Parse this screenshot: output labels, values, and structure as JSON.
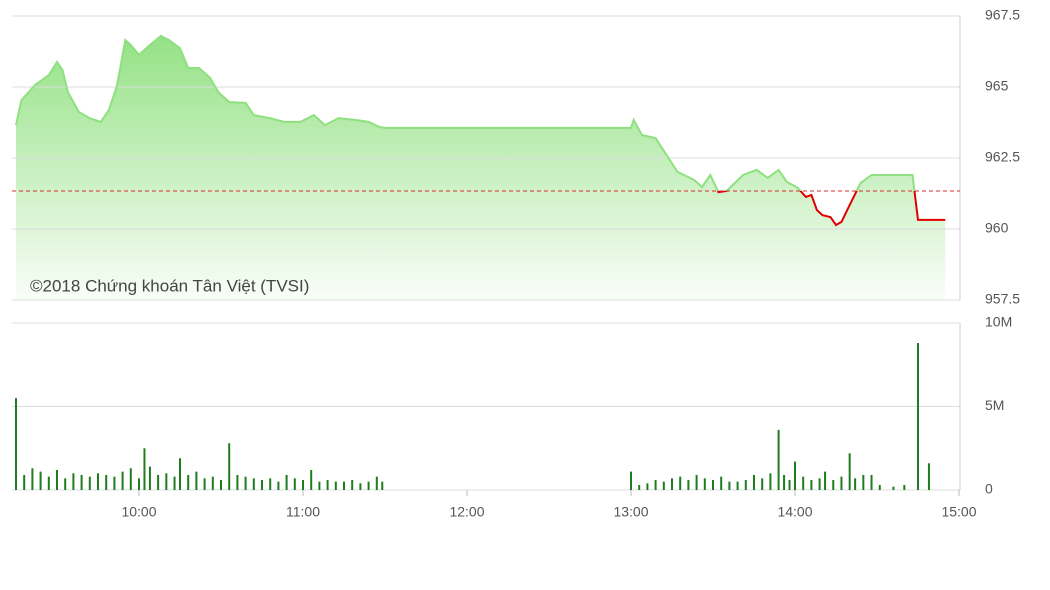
{
  "chart_data": [
    {
      "type": "line",
      "annotation": "©2018 Chứng khoán Tân Việt (TVSI)",
      "x": [
        "09:15",
        "09:17",
        "09:22",
        "09:27",
        "09:30",
        "09:32",
        "09:34",
        "09:38",
        "09:42",
        "09:46",
        "09:49",
        "09:52",
        "09:55",
        "09:57",
        "10:00",
        "10:04",
        "10:08",
        "10:11",
        "10:15",
        "10:18",
        "10:22",
        "10:26",
        "10:29",
        "10:33",
        "10:39",
        "10:42",
        "10:48",
        "10:53",
        "10:59",
        "11:04",
        "11:08",
        "11:13",
        "11:19",
        "11:24",
        "11:28",
        "11:30",
        "13:00",
        "13:01",
        "13:04",
        "13:09",
        "13:13",
        "13:17",
        "13:23",
        "13:26",
        "13:29",
        "13:32",
        "13:35",
        "13:41",
        "13:46",
        "13:50",
        "13:54",
        "13:57",
        "14:01",
        "14:04",
        "14:06",
        "14:08",
        "14:10",
        "14:13",
        "14:15",
        "14:17",
        "14:20",
        "14:24",
        "14:28",
        "14:43",
        "14:45",
        "14:55"
      ],
      "values": [
        963.66,
        964.54,
        965.07,
        965.42,
        965.88,
        965.6,
        964.82,
        964.12,
        963.9,
        963.77,
        964.19,
        965.07,
        966.65,
        966.48,
        966.13,
        966.48,
        966.8,
        966.65,
        966.37,
        965.67,
        965.67,
        965.32,
        964.82,
        964.47,
        964.44,
        964.01,
        963.9,
        963.77,
        963.77,
        964.01,
        963.66,
        963.9,
        963.84,
        963.77,
        963.59,
        963.56,
        963.56,
        963.84,
        963.31,
        963.2,
        962.61,
        962.01,
        961.73,
        961.48,
        961.9,
        961.3,
        961.34,
        961.9,
        962.08,
        961.8,
        962.08,
        961.66,
        961.45,
        961.13,
        961.2,
        960.67,
        960.49,
        960.42,
        960.14,
        960.25,
        960.85,
        961.62,
        961.9,
        961.9,
        960.32,
        960.32
      ],
      "reference": 961.34,
      "up_color": "#8fe07f",
      "down_color": "#e00000",
      "reference_color": "#d32f2f",
      "xlim": [
        "09:15",
        "15:00"
      ],
      "ylim": [
        957.5,
        967.5
      ],
      "yticks": [
        957.5,
        960,
        962.5,
        965,
        967.5
      ],
      "grid": true
    },
    {
      "type": "bar",
      "color": "#1e7d1e",
      "x": [
        "09:15",
        "09:18",
        "09:21",
        "09:24",
        "09:27",
        "09:30",
        "09:33",
        "09:36",
        "09:39",
        "09:42",
        "09:45",
        "09:48",
        "09:51",
        "09:54",
        "09:57",
        "10:00",
        "10:02",
        "10:04",
        "10:07",
        "10:10",
        "10:13",
        "10:15",
        "10:18",
        "10:21",
        "10:24",
        "10:27",
        "10:30",
        "10:33",
        "10:36",
        "10:39",
        "10:42",
        "10:45",
        "10:48",
        "10:51",
        "10:54",
        "10:57",
        "11:00",
        "11:03",
        "11:06",
        "11:09",
        "11:12",
        "11:15",
        "11:18",
        "11:21",
        "11:24",
        "11:27",
        "11:29",
        "13:00",
        "13:03",
        "13:06",
        "13:09",
        "13:12",
        "13:15",
        "13:18",
        "13:21",
        "13:24",
        "13:27",
        "13:30",
        "13:33",
        "13:36",
        "13:39",
        "13:42",
        "13:45",
        "13:48",
        "13:51",
        "13:54",
        "13:56",
        "13:58",
        "14:00",
        "14:03",
        "14:06",
        "14:09",
        "14:11",
        "14:14",
        "14:17",
        "14:20",
        "14:22",
        "14:25",
        "14:28",
        "14:31",
        "14:36",
        "14:40",
        "14:45",
        "14:49"
      ],
      "values": [
        5.5,
        0.9,
        1.3,
        1.1,
        0.8,
        1.2,
        0.7,
        1.0,
        0.9,
        0.8,
        1.0,
        0.9,
        0.8,
        1.1,
        1.3,
        0.7,
        2.5,
        1.4,
        0.9,
        1.0,
        0.8,
        1.9,
        0.9,
        1.1,
        0.7,
        0.8,
        0.6,
        2.8,
        0.9,
        0.8,
        0.7,
        0.6,
        0.7,
        0.5,
        0.9,
        0.7,
        0.6,
        1.2,
        0.5,
        0.6,
        0.5,
        0.5,
        0.6,
        0.4,
        0.5,
        0.8,
        0.5,
        1.1,
        0.3,
        0.4,
        0.6,
        0.5,
        0.7,
        0.8,
        0.6,
        0.9,
        0.7,
        0.6,
        0.8,
        0.5,
        0.5,
        0.6,
        0.9,
        0.7,
        1.0,
        3.6,
        0.9,
        0.6,
        1.7,
        0.8,
        0.6,
        0.7,
        1.1,
        0.6,
        0.8,
        2.2,
        0.7,
        0.9,
        0.9,
        0.3,
        0.2,
        0.3,
        8.8,
        1.6
      ],
      "xlim": [
        "09:15",
        "15:00"
      ],
      "xticks": [
        "10:00",
        "11:00",
        "12:00",
        "13:00",
        "14:00",
        "15:00"
      ],
      "ylim": [
        0,
        10
      ],
      "yticks": [
        {
          "value": 0,
          "label": "0"
        },
        {
          "value": 5,
          "label": "5M"
        },
        {
          "value": 10,
          "label": "10M"
        }
      ],
      "grid": true
    }
  ]
}
